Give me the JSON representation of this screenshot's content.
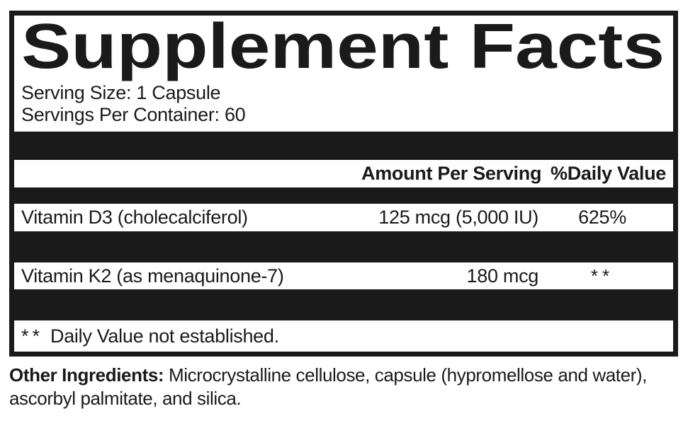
{
  "label": {
    "title": "Supplement Facts",
    "serving_size": "Serving Size: 1 Capsule",
    "servings_per_container": "Servings Per Container: 60",
    "columns": {
      "amount": "Amount Per Serving",
      "daily_value": "%Daily Value"
    },
    "rows": [
      {
        "name": "Vitamin D3 (cholecalciferol)",
        "amount": "125 mcg (5,000 IU)",
        "daily_value": "625%"
      },
      {
        "name": "Vitamin K2 (as menaquinone-7)",
        "amount": "180 mcg",
        "daily_value": "**"
      }
    ],
    "footnote": {
      "marker": "**",
      "text": "Daily Value not established."
    },
    "other_ingredients": {
      "label": "Other Ingredients:",
      "text": "Microcrystalline cellulose, capsule (hypromellose and water), ascorbyl palmitate, and silica."
    }
  },
  "colors": {
    "ink": "#1a1a1a",
    "background": "#ffffff"
  }
}
